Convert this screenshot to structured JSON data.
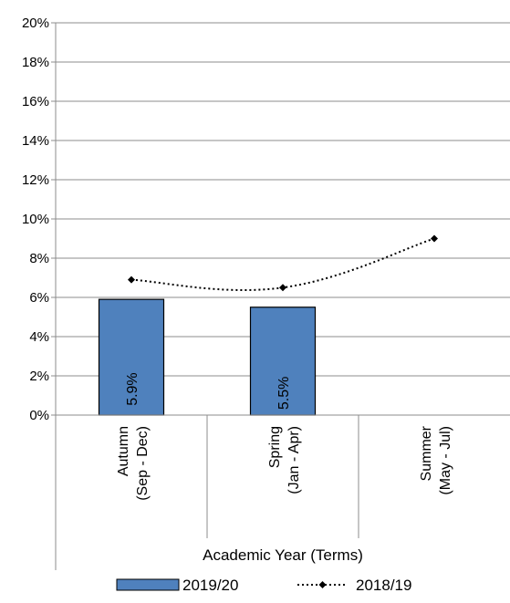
{
  "chart_data": {
    "type": "bar",
    "categories": [
      [
        "Autumn",
        "(Sep - Dec)"
      ],
      [
        "Spring",
        "(Jan - Apr)"
      ],
      [
        "Summer",
        "(May - Jul)"
      ]
    ],
    "series": [
      {
        "name": "2019/20",
        "kind": "bar",
        "values": [
          5.9,
          5.5,
          null
        ],
        "data_labels": [
          "5.9%",
          "5.5%",
          null
        ],
        "color": "#4f81bd"
      },
      {
        "name": "2018/19",
        "kind": "line",
        "style": "dotted",
        "marker": "diamond",
        "values": [
          6.9,
          6.5,
          9.0
        ],
        "color": "#000000"
      }
    ],
    "xlabel": "Academic Year (Terms)",
    "ylabel": "",
    "ylim": [
      0,
      20
    ],
    "yticks": [
      "0%",
      "2%",
      "4%",
      "6%",
      "8%",
      "10%",
      "12%",
      "14%",
      "16%",
      "18%",
      "20%"
    ],
    "grid": true,
    "legend": "bottom"
  }
}
